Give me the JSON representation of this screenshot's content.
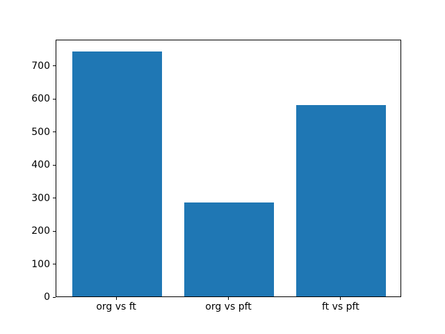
{
  "chart_data": {
    "type": "bar",
    "categories": [
      "org vs ft",
      "org vs pft",
      "ft vs pft"
    ],
    "values": [
      742,
      285,
      580
    ],
    "title": "",
    "xlabel": "",
    "ylabel": "",
    "ylim": [
      0,
      779
    ],
    "yticks": [
      0,
      100,
      200,
      300,
      400,
      500,
      600,
      700
    ],
    "bar_width_fraction": 0.8,
    "bar_color": "#1f77b4",
    "axis_color": "#000000",
    "background_color": "#ffffff",
    "grid": false,
    "legend_position": "none"
  }
}
